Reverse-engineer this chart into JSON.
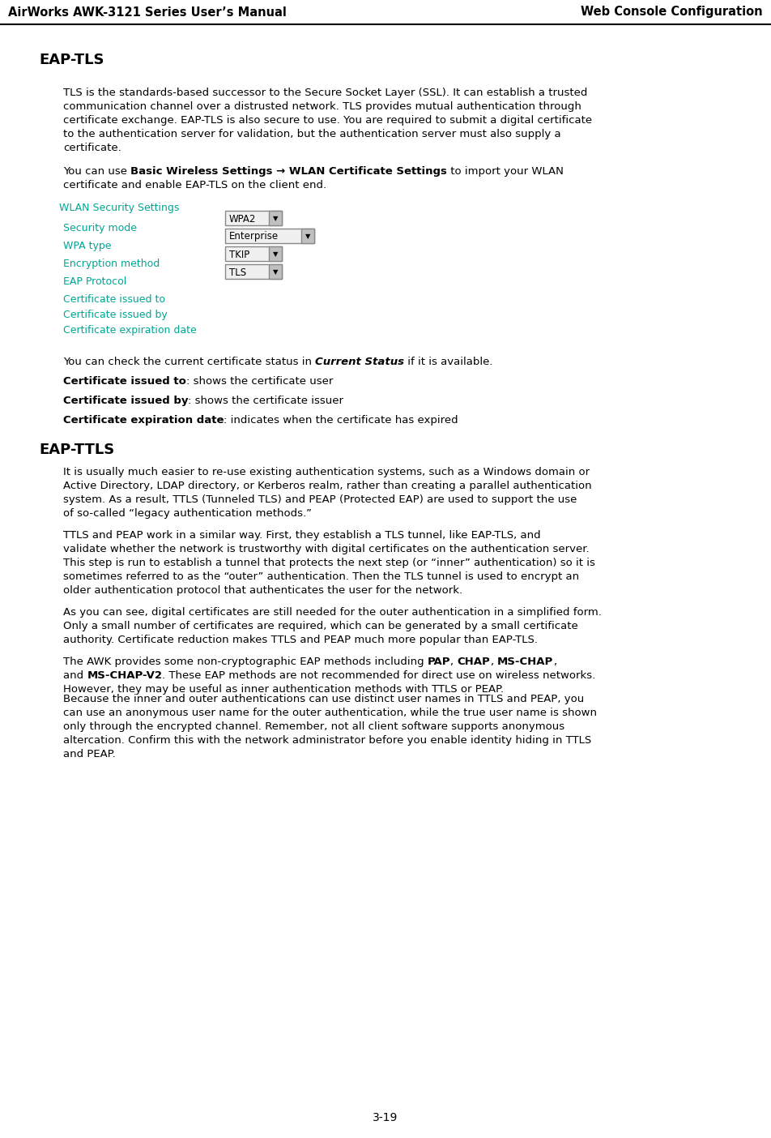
{
  "header_left": "AirWorks AWK-3121 Series User’s Manual",
  "header_right": "Web Console Configuration",
  "page_number": "3-19",
  "background_color": "#ffffff",
  "header_font_color": "#000000",
  "teal_color": "#00A693",
  "section1_title": "EAP-TLS",
  "section1_para1": "TLS is the standards-based successor to the Secure Socket Layer (SSL). It can establish a trusted\ncommunication channel over a distrusted network. TLS provides mutual authentication through\ncertificate exchange. EAP-TLS is also secure to use. You are required to submit a digital certificate\nto the authentication server for validation, but the authentication server must also supply a\ncertificate.",
  "section1_para2_normal1": "You can use ",
  "section1_para2_bold": "Basic Wireless Settings → WLAN Certificate Settings",
  "section1_para2_normal2": " to import your WLAN\ncertificate and enable EAP-TLS on the client end.",
  "wlan_title": "WLAN Security Settings",
  "wlan_rows": [
    {
      "label": "Security mode",
      "value": "WPA2"
    },
    {
      "label": "WPA type",
      "value": "Enterprise"
    },
    {
      "label": "Encryption method",
      "value": "TKIP"
    },
    {
      "label": "EAP Protocol",
      "value": "TLS"
    }
  ],
  "wlan_extra": [
    "Certificate issued to",
    "Certificate issued by",
    "Certificate expiration date"
  ],
  "section1_para3_normal1": "You can check the current certificate status in ",
  "section1_para3_bold": "Current Status",
  "section1_para3_normal2": " if it is available.",
  "cert_items": [
    {
      "bold": "Certificate issued to",
      "normal": ": shows the certificate user"
    },
    {
      "bold": "Certificate issued by",
      "normal": ": shows the certificate issuer"
    },
    {
      "bold": "Certificate expiration date",
      "normal": ": indicates when the certificate has expired"
    }
  ],
  "section2_title": "EAP-TTLS",
  "section2_para1": "It is usually much easier to re-use existing authentication systems, such as a Windows domain or\nActive Directory, LDAP directory, or Kerberos realm, rather than creating a parallel authentication\nsystem. As a result, TTLS (Tunneled TLS) and PEAP (Protected EAP) are used to support the use\nof so-called “legacy authentication methods.”",
  "section2_para2": "TTLS and PEAP work in a similar way. First, they establish a TLS tunnel, like EAP-TLS, and\nvalidate whether the network is trustworthy with digital certificates on the authentication server.\nThis step is run to establish a tunnel that protects the next step (or “inner” authentication) so it is\nsometimes referred to as the “outer” authentication. Then the TLS tunnel is used to encrypt an\nolder authentication protocol that authenticates the user for the network.",
  "section2_para3": "As you can see, digital certificates are still needed for the outer authentication in a simplified form.\nOnly a small number of certificates are required, which can be generated by a small certificate\nauthority. Certificate reduction makes TTLS and PEAP much more popular than EAP-TLS.",
  "section2_para4_normal1": "The AWK provides some non-cryptographic EAP methods including ",
  "section2_para4_bold1": "PAP",
  "section2_para4_normal2": ", ",
  "section2_para4_bold2": "CHAP",
  "section2_para4_normal3": ", ",
  "section2_para4_bold3": "MS-CHAP",
  "section2_para4_normal4": ",\nand ",
  "section2_para4_bold4": "MS-CHAP-V2",
  "section2_para4_normal5": ". These EAP methods are not recommended for direct use on wireless networks.\nHowever, they may be useful as inner authentication methods with TTLS or PEAP.",
  "section2_para5": "Because the inner and outer authentications can use distinct user names in TTLS and PEAP, you\ncan use an anonymous user name for the outer authentication, while the true user name is shown\nonly through the encrypted channel. Remember, not all client software supports anonymous\naltercation. Confirm this with the network administrator before you enable identity hiding in TTLS\nand PEAP."
}
